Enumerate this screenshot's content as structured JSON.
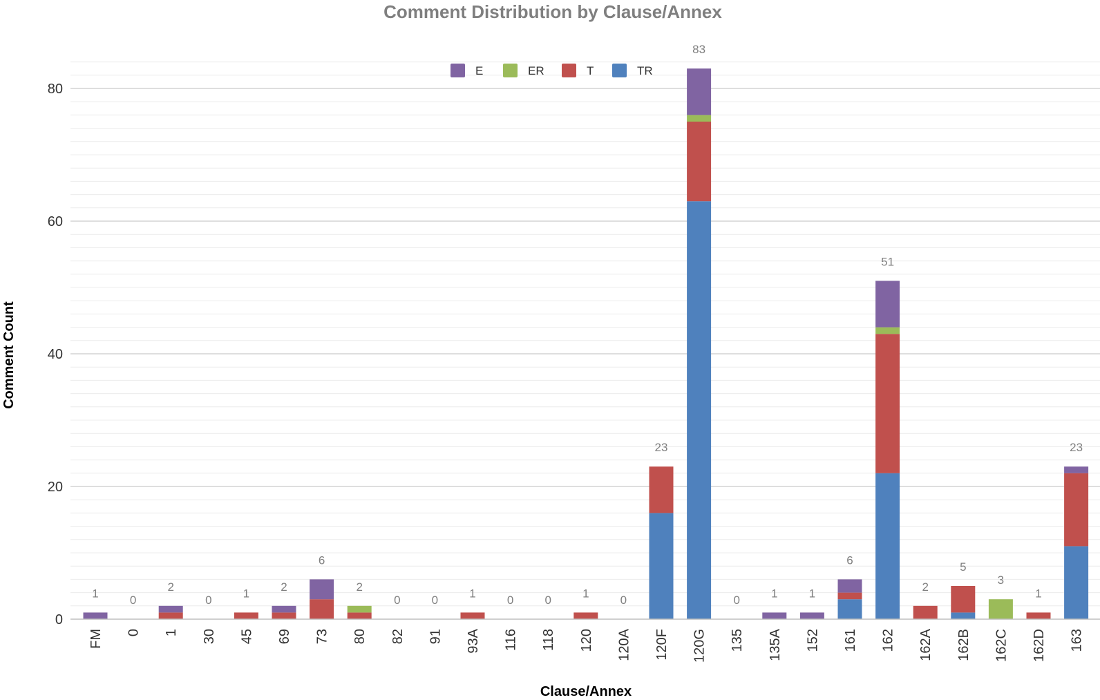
{
  "chart_data": {
    "type": "bar",
    "stacked": true,
    "title": "Comment Distribution by Clause/Annex",
    "xlabel": "Clause/Annex",
    "ylabel": "Comment Count",
    "ylim": [
      0,
      85
    ],
    "y_ticks": [
      0,
      20,
      40,
      60,
      80
    ],
    "grid": true,
    "legend_position": "top-center",
    "categories": [
      "FM",
      "0",
      "1",
      "30",
      "45",
      "69",
      "73",
      "80",
      "82",
      "91",
      "93A",
      "116",
      "118",
      "120",
      "120A",
      "120F",
      "120G",
      "135",
      "135A",
      "152",
      "161",
      "162",
      "162A",
      "162B",
      "162C",
      "162D",
      "163"
    ],
    "series": [
      {
        "name": "TR",
        "color": "#4f81bd",
        "values": [
          0,
          0,
          0,
          0,
          0,
          0,
          0,
          0,
          0,
          0,
          0,
          0,
          0,
          0,
          0,
          16,
          63,
          0,
          0,
          0,
          3,
          22,
          0,
          1,
          0,
          0,
          11
        ]
      },
      {
        "name": "T",
        "color": "#c0504d",
        "values": [
          0,
          0,
          1,
          0,
          1,
          1,
          3,
          1,
          0,
          0,
          1,
          0,
          0,
          1,
          0,
          7,
          12,
          0,
          0,
          0,
          1,
          21,
          2,
          4,
          0,
          1,
          11
        ]
      },
      {
        "name": "ER",
        "color": "#9bbb59",
        "values": [
          0,
          0,
          0,
          0,
          0,
          0,
          0,
          1,
          0,
          0,
          0,
          0,
          0,
          0,
          0,
          0,
          1,
          0,
          0,
          0,
          0,
          1,
          0,
          0,
          3,
          0,
          0
        ]
      },
      {
        "name": "E",
        "color": "#8064a2",
        "values": [
          1,
          0,
          1,
          0,
          0,
          1,
          3,
          0,
          0,
          0,
          0,
          0,
          0,
          0,
          0,
          0,
          7,
          0,
          1,
          1,
          2,
          7,
          0,
          0,
          0,
          0,
          1
        ]
      }
    ],
    "legend_order": [
      "E",
      "ER",
      "T",
      "TR"
    ],
    "totals": [
      "1",
      "0",
      "2",
      "0",
      "1",
      "2",
      "6",
      "2",
      "0",
      "0",
      "1",
      "0",
      "0",
      "1",
      "0",
      "23",
      "83",
      "0",
      "1",
      "1",
      "6",
      "51",
      "2",
      "5",
      "3",
      "1",
      "23"
    ]
  }
}
